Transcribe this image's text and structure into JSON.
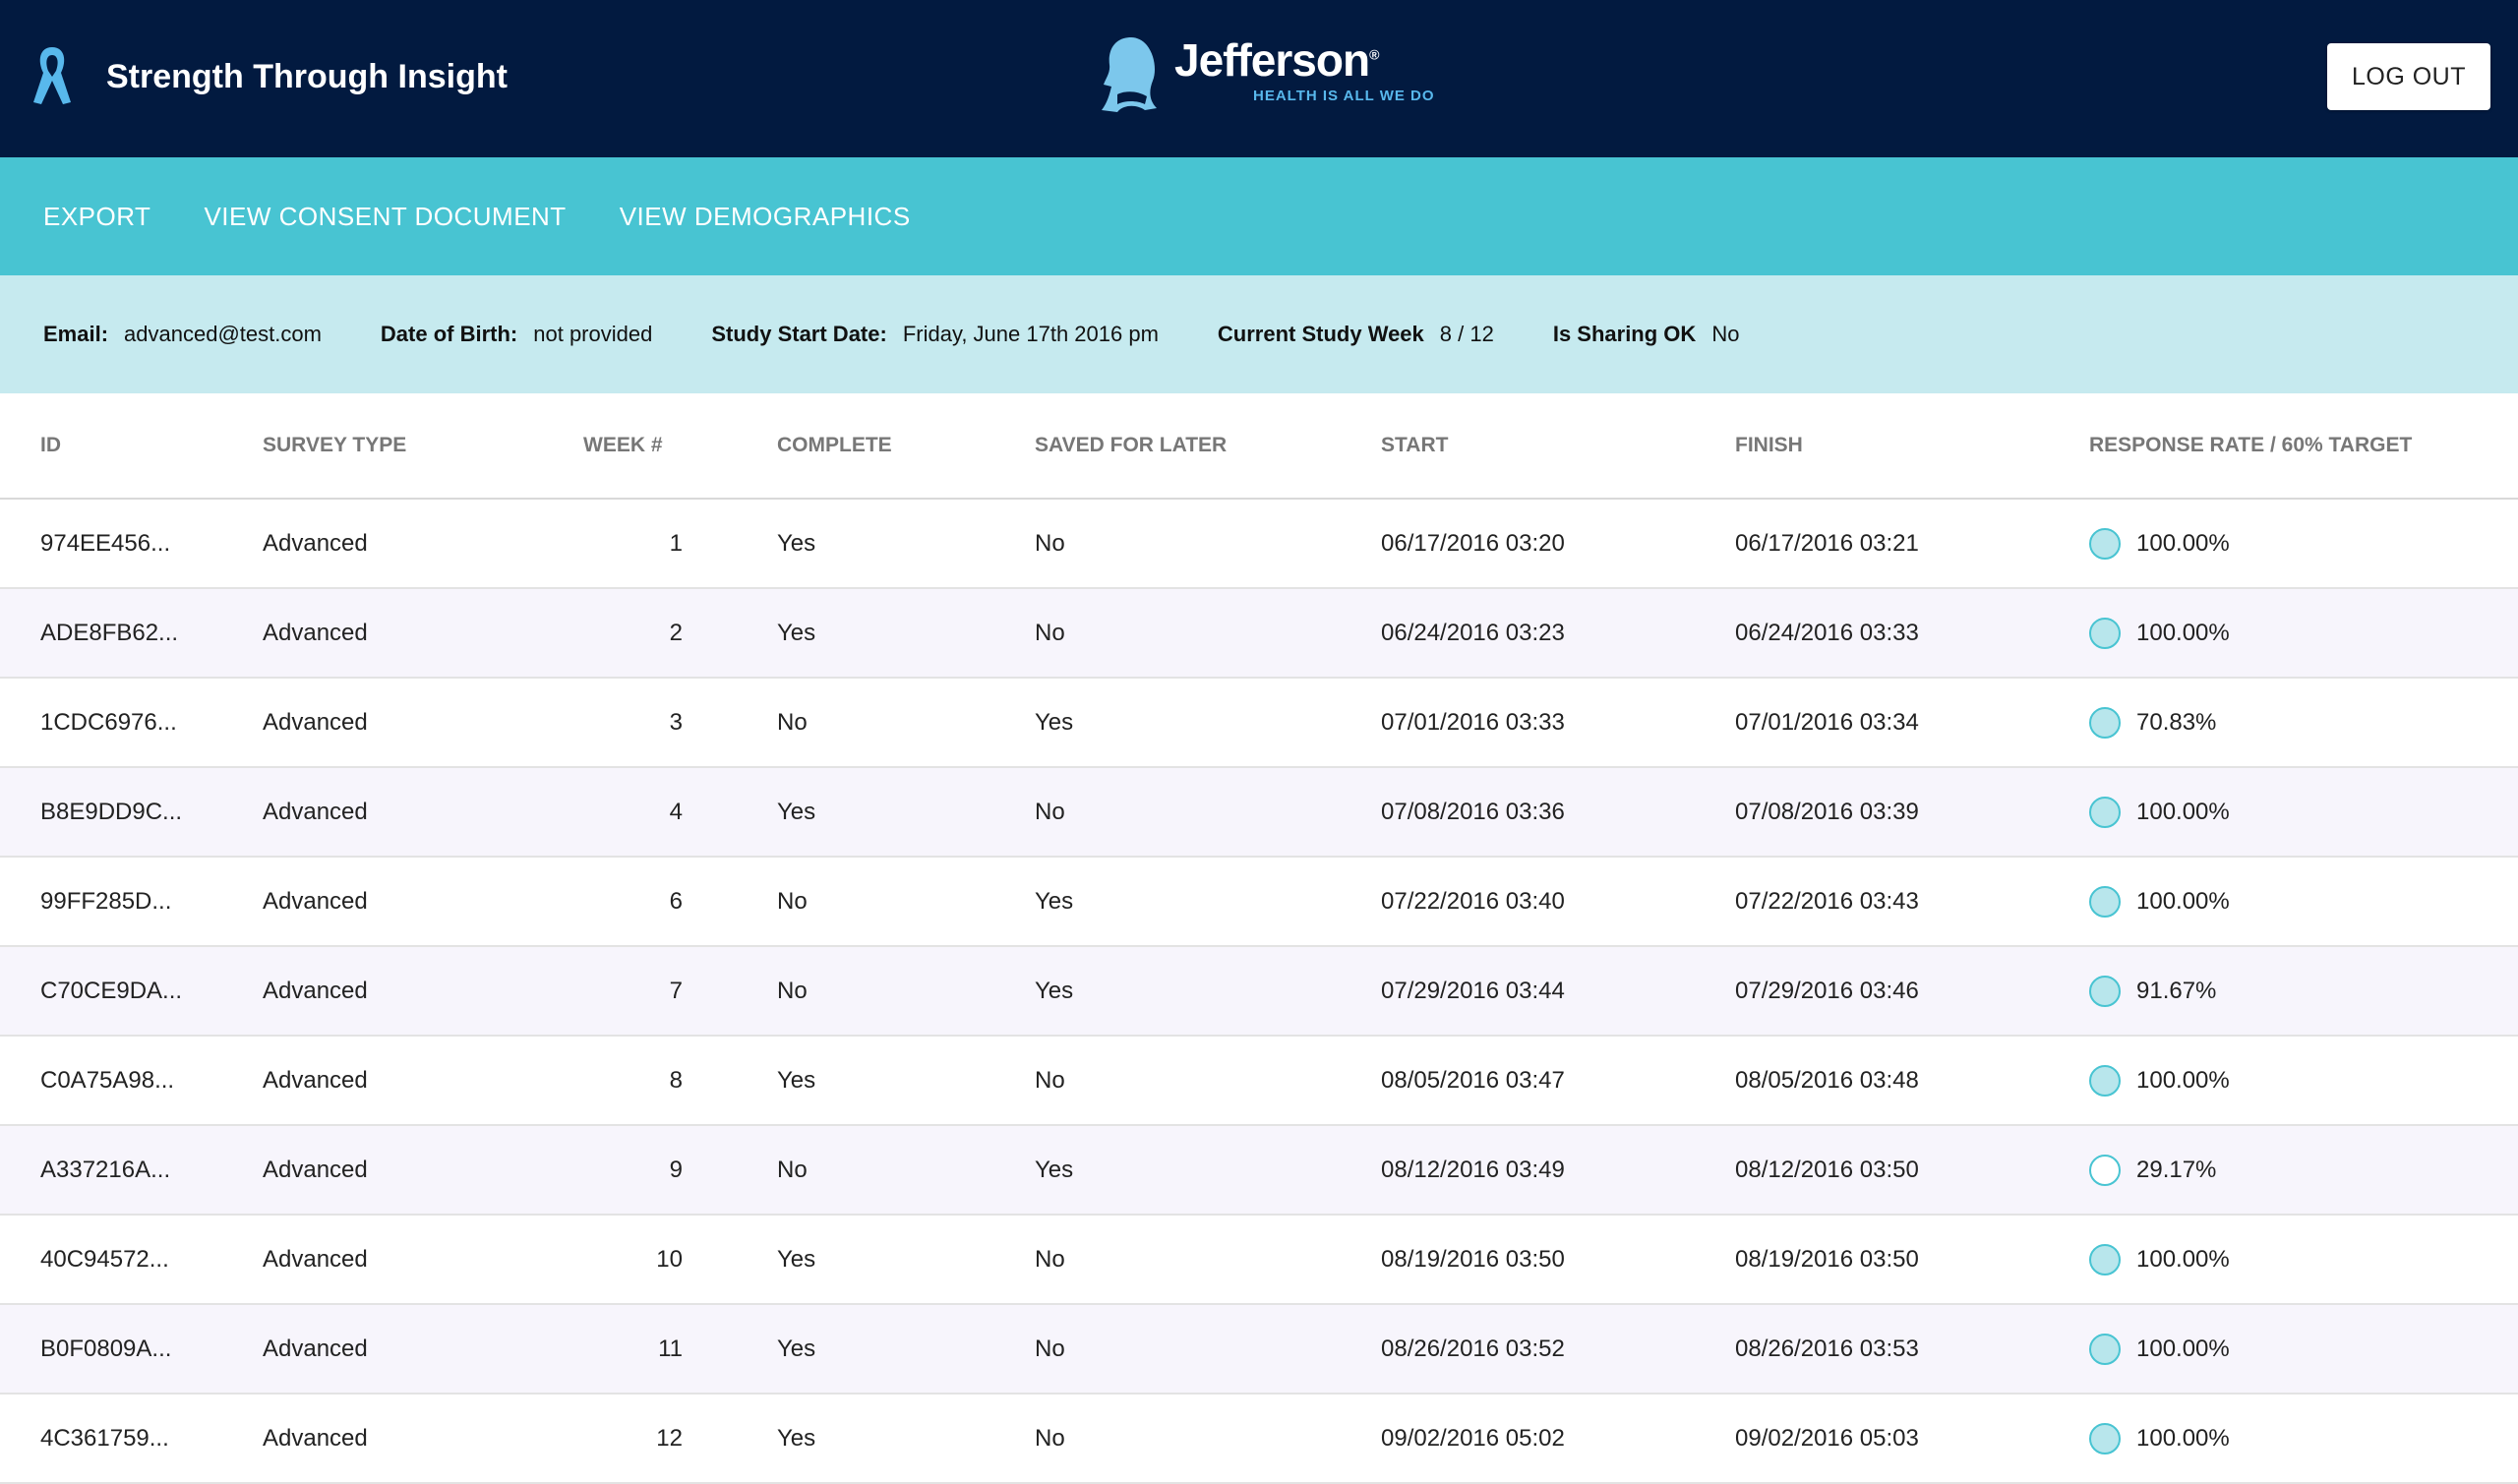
{
  "header": {
    "app_title": "Strength Through Insight",
    "logo": {
      "name": "Jefferson",
      "registered": "®",
      "tagline": "HEALTH IS ALL WE DO"
    },
    "logout_label": "LOG OUT"
  },
  "nav": {
    "items": [
      {
        "label": "EXPORT"
      },
      {
        "label": "VIEW CONSENT DOCUMENT"
      },
      {
        "label": "VIEW DEMOGRAPHICS"
      }
    ]
  },
  "info": {
    "email_label": "Email:",
    "email_value": "advanced@test.com",
    "dob_label": "Date of Birth:",
    "dob_value": "not provided",
    "start_label": "Study Start Date:",
    "start_value": "Friday, June 17th 2016 pm",
    "week_label": "Current Study Week",
    "week_value": "8 / 12",
    "sharing_label": "Is Sharing OK",
    "sharing_value": "No"
  },
  "table": {
    "columns": [
      "ID",
      "SURVEY TYPE",
      "WEEK #",
      "COMPLETE",
      "SAVED FOR LATER",
      "START",
      "FINISH",
      "RESPONSE RATE / 60% TARGET"
    ],
    "rows": [
      {
        "id": "974EE456...",
        "type": "Advanced",
        "week": "1",
        "complete": "Yes",
        "saved": "No",
        "start": "06/17/2016 03:20",
        "finish": "06/17/2016 03:21",
        "rate": "100.00%",
        "meets_target": true
      },
      {
        "id": "ADE8FB62...",
        "type": "Advanced",
        "week": "2",
        "complete": "Yes",
        "saved": "No",
        "start": "06/24/2016 03:23",
        "finish": "06/24/2016 03:33",
        "rate": "100.00%",
        "meets_target": true
      },
      {
        "id": "1CDC6976...",
        "type": "Advanced",
        "week": "3",
        "complete": "No",
        "saved": "Yes",
        "start": "07/01/2016 03:33",
        "finish": "07/01/2016 03:34",
        "rate": "70.83%",
        "meets_target": true
      },
      {
        "id": "B8E9DD9C...",
        "type": "Advanced",
        "week": "4",
        "complete": "Yes",
        "saved": "No",
        "start": "07/08/2016 03:36",
        "finish": "07/08/2016 03:39",
        "rate": "100.00%",
        "meets_target": true
      },
      {
        "id": "99FF285D...",
        "type": "Advanced",
        "week": "6",
        "complete": "No",
        "saved": "Yes",
        "start": "07/22/2016 03:40",
        "finish": "07/22/2016 03:43",
        "rate": "100.00%",
        "meets_target": true
      },
      {
        "id": "C70CE9DA...",
        "type": "Advanced",
        "week": "7",
        "complete": "No",
        "saved": "Yes",
        "start": "07/29/2016 03:44",
        "finish": "07/29/2016 03:46",
        "rate": "91.67%",
        "meets_target": true
      },
      {
        "id": "C0A75A98...",
        "type": "Advanced",
        "week": "8",
        "complete": "Yes",
        "saved": "No",
        "start": "08/05/2016 03:47",
        "finish": "08/05/2016 03:48",
        "rate": "100.00%",
        "meets_target": true
      },
      {
        "id": "A337216A...",
        "type": "Advanced",
        "week": "9",
        "complete": "No",
        "saved": "Yes",
        "start": "08/12/2016 03:49",
        "finish": "08/12/2016 03:50",
        "rate": "29.17%",
        "meets_target": false
      },
      {
        "id": "40C94572...",
        "type": "Advanced",
        "week": "10",
        "complete": "Yes",
        "saved": "No",
        "start": "08/19/2016 03:50",
        "finish": "08/19/2016 03:50",
        "rate": "100.00%",
        "meets_target": true
      },
      {
        "id": "B0F0809A...",
        "type": "Advanced",
        "week": "11",
        "complete": "Yes",
        "saved": "No",
        "start": "08/26/2016 03:52",
        "finish": "08/26/2016 03:53",
        "rate": "100.00%",
        "meets_target": true
      },
      {
        "id": "4C361759...",
        "type": "Advanced",
        "week": "12",
        "complete": "Yes",
        "saved": "No",
        "start": "09/02/2016 05:02",
        "finish": "09/02/2016 05:03",
        "rate": "100.00%",
        "meets_target": true
      }
    ]
  },
  "icons": {
    "ribbon": "awareness-ribbon-icon",
    "logo_head": "jefferson-profile-icon",
    "rate_indicator": "response-rate-circle-icon"
  },
  "colors": {
    "header_bg": "#021a40",
    "nav_bg": "#48c4d2",
    "info_bg": "#c6eaef",
    "link": "#1c30d0",
    "accent": "#58b8ec"
  }
}
